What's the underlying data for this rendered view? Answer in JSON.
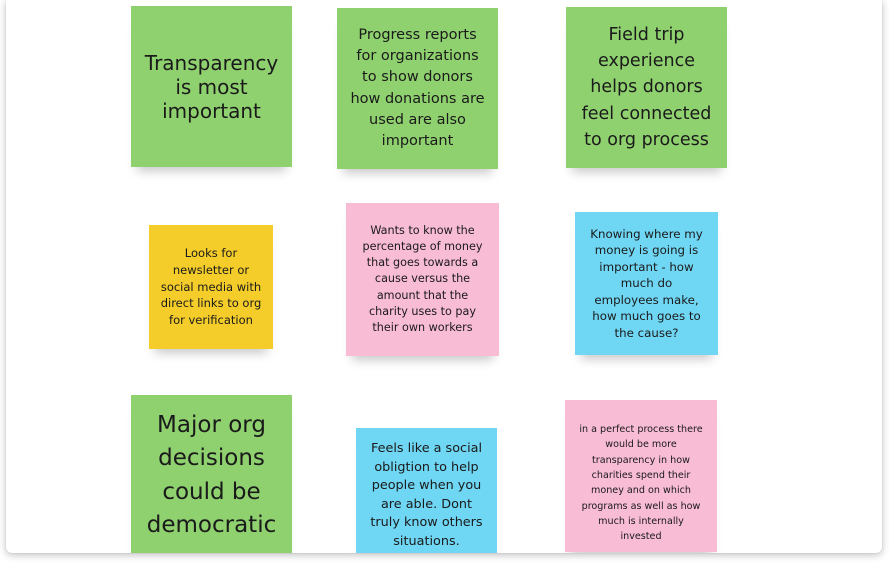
{
  "board": {
    "notes": [
      {
        "color": "#8fd16f",
        "text": "Transparency is most important"
      },
      {
        "color": "#8fd16f",
        "text": "Progress reports for organizations to show donors how donations are used are also important"
      },
      {
        "color": "#8fd16f",
        "text": "Field trip experience helps donors feel connected to org process"
      },
      {
        "color": "#f4cd2a",
        "text": "Looks for newsletter or social media with direct links to org for verification"
      },
      {
        "color": "#f8bcd5",
        "text": "Wants to know the percentage of money that goes towards a cause versus the amount that the charity uses to pay their own workers"
      },
      {
        "color": "#6fd6f4",
        "text": "Knowing where my money is going is important - how much do employees make, how much goes to the cause?"
      },
      {
        "color": "#8fd16f",
        "text": "Major org decisions could be democratic"
      },
      {
        "color": "#6fd6f4",
        "text": "Feels like a social obligtion to help people when you are able. Dont truly know others situations."
      },
      {
        "color": "#f8bcd5",
        "text": "in a perfect process there would be more transparency in how charities spend their money and on which programs as well as how much is internally invested"
      }
    ]
  }
}
